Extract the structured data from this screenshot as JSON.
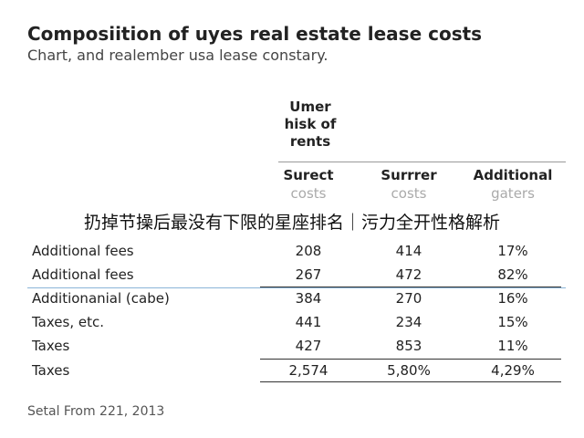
{
  "header": {
    "title": "Composiition of uyes real estate lease costs",
    "subtitle": "Chart, and realember usa lease constary."
  },
  "table": {
    "group_header": "Umer hisk of rents",
    "columns": [
      {
        "title": "Surect",
        "sub": "costs"
      },
      {
        "title": "Surrrer",
        "sub": "costs"
      },
      {
        "title": "Additional",
        "sub": "gaters"
      }
    ],
    "rows": [
      [
        "Additional fees",
        "208",
        "414",
        "17%"
      ],
      [
        "Additional fees",
        "267",
        "472",
        "82%"
      ],
      [
        "Additionanial (cabe)",
        "384",
        "270",
        "16%"
      ],
      [
        "Taxes, etc.",
        "441",
        "234",
        "15%"
      ],
      [
        "Taxes",
        "427",
        "853",
        "11%"
      ],
      [
        "Taxes",
        "2,574",
        "5,80%",
        "4,29%"
      ]
    ]
  },
  "banner": "扔掉节操后最没有下限的星座排名｜污力全开性格解析",
  "footer": "Setal From 221, 2013"
}
